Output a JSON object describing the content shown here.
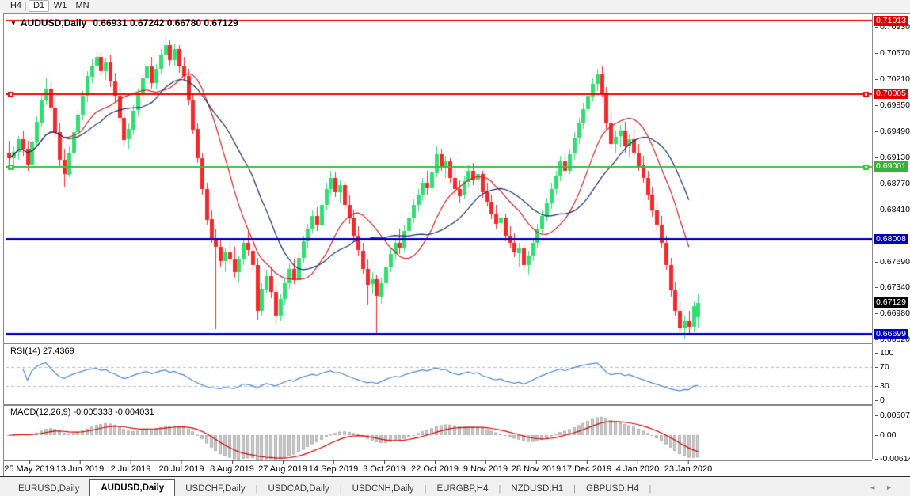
{
  "toolbar": {
    "buttons": [
      {
        "label": "H4",
        "active": false
      },
      {
        "label": "D1",
        "active": true
      },
      {
        "label": "W1",
        "active": false
      },
      {
        "label": "MN",
        "active": false
      }
    ]
  },
  "icons": {
    "symbol_dropdown": "▼",
    "tab_scroll_left": "◄",
    "tab_scroll_right": "►"
  },
  "header": {
    "symbol_label": "AUDUSD,Daily",
    "ohlc_label": "0.66931 0.67242 0.66780 0.67129"
  },
  "colors": {
    "candle_up": "#30DF70",
    "candle_down": "#F22A2A",
    "ma_fast": "#D42020",
    "ma_slow": "#1B2B6B",
    "rsi_line": "#4A86D2",
    "macd_hist": "#C9C9C9",
    "macd_signal": "#D40000",
    "hline_red": "#F00000",
    "hline_green": "#3CBE3C",
    "hline_blue": "#0000C0",
    "badge_black": "#000000"
  },
  "price_axis": {
    "ticks": [
      0.7093,
      0.7057,
      0.7021,
      0.6985,
      0.6949,
      0.6913,
      0.6877,
      0.6841,
      0.6769,
      0.6734,
      0.6698,
      0.6662
    ],
    "badges": [
      {
        "text": "0.71013",
        "price": 0.71013,
        "bg": "#E00000"
      },
      {
        "text": "0.70005",
        "price": 0.70005,
        "bg": "#E00000"
      },
      {
        "text": "0.69001",
        "price": 0.69001,
        "bg": "#3CB03C"
      },
      {
        "text": "0.68008",
        "price": 0.68008,
        "bg": "#0000B6"
      },
      {
        "text": "0.67129",
        "price": 0.67129,
        "bg": "#000000"
      },
      {
        "text": "0.66699",
        "price": 0.66699,
        "bg": "#0000B6"
      }
    ]
  },
  "rsi_panel": {
    "label": "RSI(14) 27.4369",
    "value": 27.4369,
    "period": 14,
    "axis_ticks": [
      100,
      70,
      30,
      0
    ],
    "levels": [
      70,
      30
    ]
  },
  "macd_panel": {
    "label": "MACD(12,26,9) -0.005333 -0.004031",
    "values": [
      -0.005333,
      -0.004031
    ],
    "params": [
      12,
      26,
      9
    ],
    "axis_ticks": [
      0.005076,
      0.0,
      -0.006148
    ]
  },
  "tabs": {
    "items": [
      {
        "label": "EURUSD,Daily",
        "active": false
      },
      {
        "label": "AUDUSD,Daily",
        "active": true
      },
      {
        "label": "USDCHF,Daily",
        "active": false
      },
      {
        "label": "USDCAD,Daily",
        "active": false
      },
      {
        "label": "USDCNH,Daily",
        "active": false
      },
      {
        "label": "EURGBP,H4",
        "active": false
      },
      {
        "label": "NZDUSD,H1",
        "active": false
      },
      {
        "label": "GBPUSD,H4",
        "active": false
      }
    ]
  },
  "chart_data": {
    "type": "candlestick",
    "symbol": "AUDUSD",
    "timeframe": "Daily",
    "title": "AUDUSD,Daily",
    "last_bar": {
      "open": 0.66931,
      "high": 0.67242,
      "low": 0.6678,
      "close": 0.67129
    },
    "x_labels": [
      "25 May 2019",
      "13 Jun 2019",
      "2 Jul 2019",
      "20 Jul 2019",
      "8 Aug 2019",
      "27 Aug 2019",
      "14 Sep 2019",
      "3 Oct 2019",
      "22 Oct 2019",
      "9 Nov 2019",
      "28 Nov 2019",
      "17 Dec 2019",
      "4 Jan 2020",
      "23 Jan 2020"
    ],
    "y_range": [
      0.666,
      0.711
    ],
    "hlines": [
      {
        "price": 0.71013,
        "color": "#F00000",
        "lw": 2,
        "anchors": false
      },
      {
        "price": 0.70005,
        "color": "#F00000",
        "lw": 2,
        "anchors": true
      },
      {
        "price": 0.69001,
        "color": "#3CBE3C",
        "lw": 2,
        "anchors": true
      },
      {
        "price": 0.68008,
        "color": "#0000C0",
        "lw": 3,
        "anchors": false
      },
      {
        "price": 0.66699,
        "color": "#0000C0",
        "lw": 3,
        "anchors": false
      }
    ],
    "overlays": [
      {
        "name": "ma_fast",
        "type": "sma",
        "period": 13,
        "color": "#D42020"
      },
      {
        "name": "ma_slow",
        "type": "sma",
        "period": 21,
        "color": "#1B2B6B"
      }
    ],
    "indicators": [
      {
        "name": "RSI",
        "params": [
          14
        ],
        "current": 27.4369
      },
      {
        "name": "MACD",
        "params": [
          12,
          26,
          9
        ],
        "current": [
          -0.005333,
          -0.004031
        ]
      }
    ],
    "candles": [
      [
        0.692,
        0.6936,
        0.6902,
        0.6912
      ],
      [
        0.6912,
        0.6928,
        0.6895,
        0.6921
      ],
      [
        0.6921,
        0.6943,
        0.691,
        0.6938
      ],
      [
        0.6938,
        0.695,
        0.6915,
        0.6925
      ],
      [
        0.6925,
        0.6936,
        0.6895,
        0.6903
      ],
      [
        0.6903,
        0.694,
        0.6898,
        0.6935
      ],
      [
        0.6935,
        0.697,
        0.693,
        0.6962
      ],
      [
        0.6962,
        0.7,
        0.6955,
        0.6992
      ],
      [
        0.6992,
        0.7022,
        0.6985,
        0.7008
      ],
      [
        0.7008,
        0.7018,
        0.6975,
        0.6982
      ],
      [
        0.6982,
        0.6995,
        0.694,
        0.6948
      ],
      [
        0.6948,
        0.696,
        0.69,
        0.691
      ],
      [
        0.691,
        0.6925,
        0.6872,
        0.689
      ],
      [
        0.689,
        0.6928,
        0.6885,
        0.692
      ],
      [
        0.692,
        0.6955,
        0.6912,
        0.6948
      ],
      [
        0.6948,
        0.698,
        0.694,
        0.6972
      ],
      [
        0.6972,
        0.7005,
        0.6965,
        0.6998
      ],
      [
        0.6998,
        0.7032,
        0.699,
        0.7025
      ],
      [
        0.7025,
        0.7048,
        0.7015,
        0.704
      ],
      [
        0.704,
        0.706,
        0.7028,
        0.7052
      ],
      [
        0.7052,
        0.7058,
        0.7025,
        0.7032
      ],
      [
        0.7032,
        0.705,
        0.702,
        0.7044
      ],
      [
        0.7044,
        0.7055,
        0.701,
        0.7018
      ],
      [
        0.7018,
        0.703,
        0.699,
        0.6998
      ],
      [
        0.6998,
        0.701,
        0.696,
        0.6968
      ],
      [
        0.6968,
        0.698,
        0.6928,
        0.6938
      ],
      [
        0.6938,
        0.696,
        0.6925,
        0.6952
      ],
      [
        0.6952,
        0.6985,
        0.6945,
        0.6978
      ],
      [
        0.6978,
        0.7008,
        0.697,
        0.7
      ],
      [
        0.7,
        0.7028,
        0.6992,
        0.7022
      ],
      [
        0.7022,
        0.7045,
        0.7012,
        0.7038
      ],
      [
        0.7038,
        0.7052,
        0.7008,
        0.7015
      ],
      [
        0.7015,
        0.7042,
        0.7008,
        0.7035
      ],
      [
        0.7035,
        0.7062,
        0.7028,
        0.7055
      ],
      [
        0.7055,
        0.7082,
        0.7048,
        0.7068
      ],
      [
        0.7068,
        0.7075,
        0.704,
        0.7047
      ],
      [
        0.7047,
        0.707,
        0.7038,
        0.7062
      ],
      [
        0.7062,
        0.7068,
        0.703,
        0.7038
      ],
      [
        0.7038,
        0.7052,
        0.7018,
        0.7025
      ],
      [
        0.7025,
        0.7035,
        0.6985,
        0.6992
      ],
      [
        0.6992,
        0.7,
        0.6945,
        0.6952
      ],
      [
        0.6952,
        0.696,
        0.6905,
        0.6912
      ],
      [
        0.6912,
        0.692,
        0.6862,
        0.687
      ],
      [
        0.687,
        0.6878,
        0.682,
        0.6828
      ],
      [
        0.6828,
        0.684,
        0.6795,
        0.6802
      ],
      [
        0.6802,
        0.6815,
        0.6677,
        0.679
      ],
      [
        0.679,
        0.68,
        0.6762,
        0.677
      ],
      [
        0.677,
        0.6788,
        0.6755,
        0.6782
      ],
      [
        0.6782,
        0.6798,
        0.6765,
        0.6772
      ],
      [
        0.6772,
        0.679,
        0.6748,
        0.6755
      ],
      [
        0.6755,
        0.6778,
        0.6742,
        0.6772
      ],
      [
        0.6772,
        0.6802,
        0.6765,
        0.6795
      ],
      [
        0.6795,
        0.6812,
        0.6778,
        0.6785
      ],
      [
        0.6785,
        0.6795,
        0.6758,
        0.6765
      ],
      [
        0.6765,
        0.6775,
        0.669,
        0.6702
      ],
      [
        0.6702,
        0.674,
        0.6695,
        0.6732
      ],
      [
        0.6732,
        0.6758,
        0.6725,
        0.675
      ],
      [
        0.675,
        0.6762,
        0.672,
        0.6728
      ],
      [
        0.6728,
        0.6738,
        0.6684,
        0.6695
      ],
      [
        0.6695,
        0.6725,
        0.6688,
        0.6718
      ],
      [
        0.6718,
        0.6748,
        0.671,
        0.674
      ],
      [
        0.674,
        0.6768,
        0.6732,
        0.676
      ],
      [
        0.676,
        0.6772,
        0.6738,
        0.6745
      ],
      [
        0.6745,
        0.6782,
        0.674,
        0.6775
      ],
      [
        0.6775,
        0.6805,
        0.6768,
        0.6798
      ],
      [
        0.6798,
        0.6822,
        0.6788,
        0.6815
      ],
      [
        0.6815,
        0.684,
        0.6808,
        0.6832
      ],
      [
        0.6832,
        0.6845,
        0.6812,
        0.682
      ],
      [
        0.682,
        0.6855,
        0.6815,
        0.6848
      ],
      [
        0.6848,
        0.6878,
        0.684,
        0.687
      ],
      [
        0.687,
        0.6895,
        0.6862,
        0.6885
      ],
      [
        0.6885,
        0.6892,
        0.6858,
        0.6865
      ],
      [
        0.6865,
        0.6882,
        0.685,
        0.6875
      ],
      [
        0.6875,
        0.688,
        0.684,
        0.6848
      ],
      [
        0.6848,
        0.6862,
        0.6822,
        0.683
      ],
      [
        0.683,
        0.684,
        0.6798,
        0.6805
      ],
      [
        0.6805,
        0.6818,
        0.6778,
        0.6785
      ],
      [
        0.6785,
        0.6795,
        0.6752,
        0.676
      ],
      [
        0.676,
        0.6772,
        0.671,
        0.6738
      ],
      [
        0.6738,
        0.6755,
        0.6725,
        0.6745
      ],
      [
        0.6745,
        0.6752,
        0.667,
        0.6722
      ],
      [
        0.6722,
        0.6748,
        0.6712,
        0.674
      ],
      [
        0.674,
        0.6768,
        0.6732,
        0.6762
      ],
      [
        0.6762,
        0.6788,
        0.6755,
        0.678
      ],
      [
        0.678,
        0.6802,
        0.6772,
        0.6795
      ],
      [
        0.6795,
        0.6815,
        0.678,
        0.6788
      ],
      [
        0.6788,
        0.682,
        0.6782,
        0.6812
      ],
      [
        0.6812,
        0.6838,
        0.6805,
        0.683
      ],
      [
        0.683,
        0.6855,
        0.6822,
        0.6848
      ],
      [
        0.6848,
        0.687,
        0.684,
        0.6862
      ],
      [
        0.6862,
        0.6885,
        0.6855,
        0.6878
      ],
      [
        0.6878,
        0.6895,
        0.6862,
        0.687
      ],
      [
        0.687,
        0.69,
        0.6865,
        0.6892
      ],
      [
        0.6892,
        0.6928,
        0.6885,
        0.6918
      ],
      [
        0.6918,
        0.6925,
        0.6895,
        0.6902
      ],
      [
        0.6902,
        0.6915,
        0.6885,
        0.6908
      ],
      [
        0.6908,
        0.6912,
        0.6878,
        0.6885
      ],
      [
        0.6885,
        0.6898,
        0.6862,
        0.687
      ],
      [
        0.687,
        0.6882,
        0.6852,
        0.686
      ],
      [
        0.686,
        0.6888,
        0.6855,
        0.688
      ],
      [
        0.688,
        0.6902,
        0.6872,
        0.6895
      ],
      [
        0.6895,
        0.6905,
        0.6875,
        0.6882
      ],
      [
        0.6882,
        0.6898,
        0.6868,
        0.689
      ],
      [
        0.689,
        0.6895,
        0.6858,
        0.6865
      ],
      [
        0.6865,
        0.6878,
        0.6845,
        0.6852
      ],
      [
        0.6852,
        0.6862,
        0.6828,
        0.6835
      ],
      [
        0.6835,
        0.6848,
        0.6815,
        0.6822
      ],
      [
        0.6822,
        0.6838,
        0.6808,
        0.683
      ],
      [
        0.683,
        0.6835,
        0.6798,
        0.6805
      ],
      [
        0.6805,
        0.6818,
        0.6788,
        0.6795
      ],
      [
        0.6795,
        0.6808,
        0.6775,
        0.6782
      ],
      [
        0.6782,
        0.6795,
        0.6762,
        0.6788
      ],
      [
        0.6788,
        0.6792,
        0.6758,
        0.6765
      ],
      [
        0.6765,
        0.6785,
        0.6752,
        0.6778
      ],
      [
        0.6778,
        0.6802,
        0.677,
        0.6795
      ],
      [
        0.6795,
        0.6822,
        0.6788,
        0.6815
      ],
      [
        0.6815,
        0.684,
        0.6808,
        0.6832
      ],
      [
        0.6832,
        0.6858,
        0.6825,
        0.685
      ],
      [
        0.685,
        0.6878,
        0.6842,
        0.687
      ],
      [
        0.687,
        0.6895,
        0.6862,
        0.6888
      ],
      [
        0.6888,
        0.6915,
        0.688,
        0.6908
      ],
      [
        0.6908,
        0.692,
        0.6888,
        0.6895
      ],
      [
        0.6895,
        0.6925,
        0.689,
        0.6918
      ],
      [
        0.6918,
        0.6948,
        0.691,
        0.694
      ],
      [
        0.694,
        0.6968,
        0.6932,
        0.696
      ],
      [
        0.696,
        0.6988,
        0.6952,
        0.698
      ],
      [
        0.698,
        0.7005,
        0.6972,
        0.6998
      ],
      [
        0.6998,
        0.7022,
        0.699,
        0.7015
      ],
      [
        0.7015,
        0.7035,
        0.7005,
        0.7028
      ],
      [
        0.7028,
        0.7038,
        0.6995,
        0.7002
      ],
      [
        0.7002,
        0.701,
        0.6952,
        0.696
      ],
      [
        0.696,
        0.6975,
        0.6925,
        0.6932
      ],
      [
        0.6932,
        0.695,
        0.692,
        0.6942
      ],
      [
        0.6942,
        0.6958,
        0.6928,
        0.695
      ],
      [
        0.695,
        0.6962,
        0.692,
        0.6928
      ],
      [
        0.6928,
        0.6945,
        0.6915,
        0.6938
      ],
      [
        0.6938,
        0.6952,
        0.6912,
        0.692
      ],
      [
        0.692,
        0.6932,
        0.6895,
        0.6902
      ],
      [
        0.6902,
        0.6915,
        0.6878,
        0.6885
      ],
      [
        0.6885,
        0.6895,
        0.6855,
        0.6862
      ],
      [
        0.6862,
        0.6872,
        0.6832,
        0.684
      ],
      [
        0.684,
        0.6852,
        0.6812,
        0.682
      ],
      [
        0.682,
        0.6832,
        0.6788,
        0.6795
      ],
      [
        0.6795,
        0.6805,
        0.6758,
        0.6765
      ],
      [
        0.6765,
        0.6775,
        0.6722,
        0.673
      ],
      [
        0.673,
        0.6742,
        0.6695,
        0.6702
      ],
      [
        0.6702,
        0.6715,
        0.6668,
        0.6678
      ],
      [
        0.6678,
        0.6695,
        0.6662,
        0.6688
      ],
      [
        0.6688,
        0.6702,
        0.667,
        0.668
      ],
      [
        0.668,
        0.6715,
        0.6672,
        0.6708
      ],
      [
        0.66931,
        0.67242,
        0.6678,
        0.67129
      ]
    ]
  }
}
